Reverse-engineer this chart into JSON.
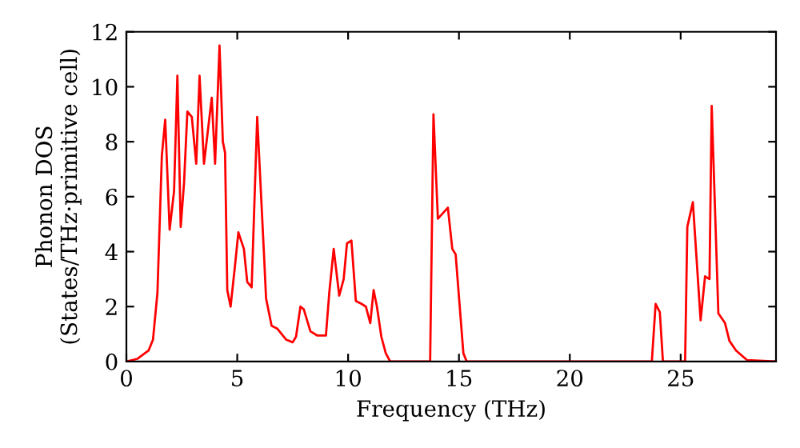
{
  "chart_data": {
    "type": "line",
    "xlabel": "Frequency (THz)",
    "ylabel": "Phonon DOS\n(States/THz·primitive cell)",
    "series": [
      {
        "color": "#ff0000",
        "x": [
          0,
          0.5,
          1,
          1.2,
          1.4,
          1.6,
          1.75,
          1.95,
          2.15,
          2.3,
          2.45,
          2.6,
          2.75,
          2.95,
          3.15,
          3.3,
          3.5,
          3.85,
          4.0,
          4.2,
          4.35,
          4.45,
          4.55,
          4.7,
          4.9,
          5.05,
          5.3,
          5.45,
          5.65,
          5.9,
          6.2,
          6.3,
          6.55,
          6.8,
          7.2,
          7.5,
          7.65,
          7.85,
          8.0,
          8.3,
          8.6,
          9.0,
          9.15,
          9.35,
          9.6,
          9.8,
          9.95,
          10.15,
          10.35,
          10.6,
          10.8,
          11.0,
          11.15,
          11.3,
          11.5,
          11.7,
          11.9,
          13.7,
          13.85,
          14.05,
          14.5,
          14.7,
          14.85,
          15.2,
          15.35,
          23.7,
          23.87,
          24.06,
          24.2,
          25.2,
          25.3,
          25.55,
          25.9,
          26.1,
          26.3,
          26.4,
          26.7,
          27.0,
          27.2,
          27.5,
          28.0,
          29.3
        ],
        "values": [
          0,
          0.1,
          0.4,
          0.8,
          2.5,
          7.5,
          8.8,
          4.8,
          6.2,
          10.4,
          4.9,
          6.5,
          9.1,
          8.9,
          7.2,
          10.4,
          7.2,
          9.6,
          7.2,
          11.5,
          8.0,
          7.6,
          2.6,
          2.0,
          3.5,
          4.7,
          4.1,
          2.9,
          2.7,
          8.9,
          4.0,
          2.3,
          1.3,
          1.2,
          0.8,
          0.7,
          0.9,
          2.0,
          1.9,
          1.1,
          0.95,
          0.95,
          2.5,
          4.1,
          2.4,
          3.0,
          4.3,
          4.4,
          2.2,
          2.1,
          2.0,
          1.4,
          2.6,
          2.0,
          0.9,
          0.3,
          0,
          0,
          9.0,
          5.2,
          5.6,
          4.1,
          3.9,
          0.3,
          0,
          0,
          2.1,
          1.8,
          0,
          0,
          4.9,
          5.8,
          1.5,
          3.1,
          3.0,
          9.3,
          1.75,
          1.4,
          0.75,
          0.4,
          0.05,
          0
        ]
      }
    ],
    "xlim": [
      0,
      29.3
    ],
    "xticks": [
      0,
      5,
      10,
      15,
      20,
      25
    ],
    "ylim": [
      0,
      12
    ],
    "yticks": [
      0,
      2,
      4,
      6,
      8,
      10,
      12
    ],
    "grid": false,
    "legend": false,
    "marker": "none",
    "line_style": "solid"
  }
}
